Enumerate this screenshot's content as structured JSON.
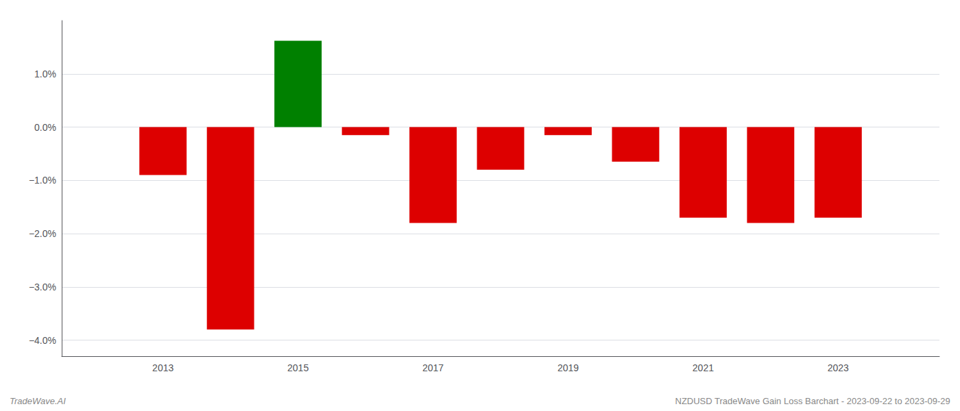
{
  "chart_data": {
    "type": "bar",
    "x": [
      2013,
      2014,
      2015,
      2016,
      2017,
      2018,
      2019,
      2020,
      2021,
      2022,
      2023
    ],
    "values": [
      -0.9,
      -3.8,
      1.62,
      -0.15,
      -1.8,
      -0.8,
      -0.15,
      -0.65,
      -1.7,
      -1.8,
      -1.7
    ],
    "colors": [
      "#dd0000",
      "#dd0000",
      "#008000",
      "#dd0000",
      "#dd0000",
      "#dd0000",
      "#dd0000",
      "#dd0000",
      "#dd0000",
      "#dd0000",
      "#dd0000"
    ],
    "xlim": [
      2011.5,
      2024.5
    ],
    "xticks": [
      2013,
      2015,
      2017,
      2019,
      2021,
      2023
    ],
    "ylim": [
      -4.3,
      2.0
    ],
    "yticks": [
      {
        "value": -4.0,
        "label": "−4.0%"
      },
      {
        "value": -3.0,
        "label": "−3.0%"
      },
      {
        "value": -2.0,
        "label": "−2.0%"
      },
      {
        "value": -1.0,
        "label": "−1.0%"
      },
      {
        "value": 0.0,
        "label": "0.0%"
      },
      {
        "value": 1.0,
        "label": "1.0%"
      }
    ],
    "grid": true,
    "annotations": [
      "TradeWave.AI",
      "NZDUSD TradeWave Gain Loss Barchart - 2023-09-22 to 2023-09-29"
    ]
  }
}
